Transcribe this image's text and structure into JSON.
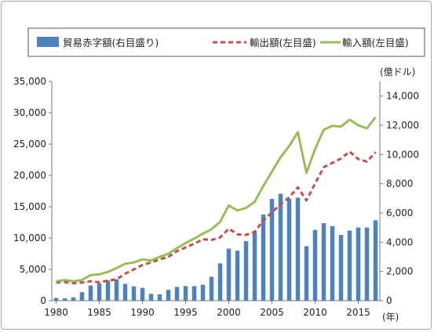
{
  "chart_data": {
    "type": "bar+line",
    "x": [
      1980,
      1981,
      1982,
      1983,
      1984,
      1985,
      1986,
      1987,
      1988,
      1989,
      1990,
      1991,
      1992,
      1993,
      1994,
      1995,
      1996,
      1997,
      1998,
      1999,
      2000,
      2001,
      2002,
      2003,
      2004,
      2005,
      2006,
      2007,
      2008,
      2009,
      2010,
      2011,
      2012,
      2013,
      2014,
      2015,
      2016,
      2017
    ],
    "series": [
      {
        "name": "貿易赤字額(右目盛り)",
        "kind": "bar",
        "axis": "right",
        "color": "#4f81bd",
        "values": [
          190,
          160,
          230,
          580,
          1040,
          1190,
          1380,
          1460,
          1150,
          980,
          880,
          470,
          430,
          740,
          940,
          1000,
          1000,
          1090,
          1640,
          2550,
          3560,
          3420,
          4070,
          4730,
          5890,
          6960,
          7320,
          6970,
          7050,
          3730,
          4840,
          5300,
          5100,
          4500,
          4800,
          5000,
          5000,
          5500
        ]
      },
      {
        "name": "輸出額(左目盛)",
        "kind": "line",
        "axis": "left",
        "color": "#c0504d",
        "dash": true,
        "values": [
          2900,
          2950,
          2800,
          2900,
          3100,
          2950,
          3200,
          3400,
          4300,
          5000,
          5700,
          6100,
          6600,
          7000,
          7900,
          8500,
          9100,
          9800,
          9700,
          10100,
          11500,
          10600,
          10500,
          11000,
          12800,
          14100,
          15400,
          16500,
          18100,
          16000,
          18700,
          21300,
          22000,
          22700,
          23800,
          22600,
          22200,
          23700
        ]
      },
      {
        "name": "輸入額(左目盛)",
        "kind": "line",
        "axis": "left",
        "color": "#9bbb59",
        "dash": false,
        "values": [
          3100,
          3300,
          3100,
          3300,
          4100,
          4200,
          4600,
          5200,
          5900,
          6100,
          6600,
          6400,
          7000,
          7500,
          8400,
          9200,
          9900,
          10700,
          11400,
          12600,
          15200,
          14400,
          14800,
          15800,
          18300,
          20600,
          22900,
          24700,
          26900,
          20400,
          24200,
          27300,
          27900,
          27800,
          28900,
          28000,
          27500,
          29300
        ]
      }
    ],
    "left_axis": {
      "ylim": [
        0,
        35000
      ],
      "ticks": [
        "0",
        "5,000",
        "10,000",
        "15,000",
        "20,000",
        "25,000",
        "30,000",
        "35,000"
      ]
    },
    "right_axis": {
      "ylim": [
        0,
        15000
      ],
      "unit": "(億ドル)",
      "ticks": [
        "0",
        "2,000",
        "4,000",
        "6,000",
        "8,000",
        "10,000",
        "12,000",
        "14,000"
      ]
    },
    "x_axis": {
      "ticks": [
        "1980",
        "1985",
        "1990",
        "1995",
        "2000",
        "2005",
        "2010",
        "2015"
      ],
      "unit": "(年)"
    },
    "legend_position": "top",
    "grid": false
  }
}
